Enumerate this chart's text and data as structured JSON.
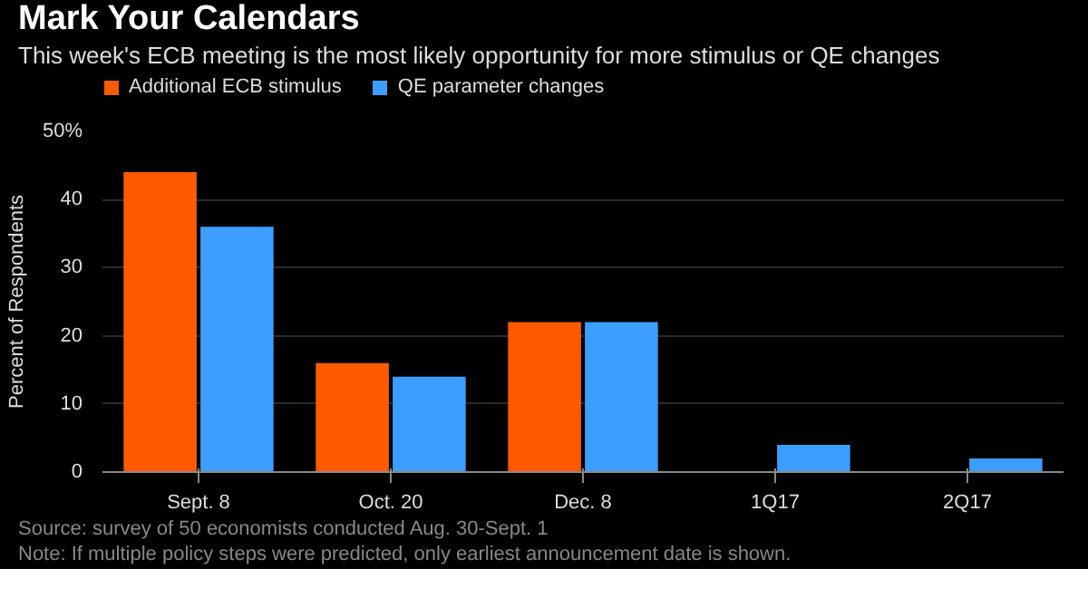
{
  "chart_data": {
    "type": "bar",
    "title": "Mark Your Calendars",
    "subtitle": "This week's ECB meeting is the most likely opportunity for more stimulus or QE changes",
    "ylabel": "Percent of Respondents",
    "categories": [
      "Sept. 8",
      "Oct. 20",
      "Dec. 8",
      "1Q17",
      "2Q17"
    ],
    "series": [
      {
        "name": "Additional ECB stimulus",
        "color": "#ff5a00",
        "values": [
          44,
          16,
          22,
          0,
          0
        ]
      },
      {
        "name": "QE parameter changes",
        "color": "#3b9eff",
        "values": [
          36,
          14,
          22,
          4,
          2
        ]
      }
    ],
    "ylim": [
      0,
      50
    ],
    "yticks": [
      0,
      10,
      20,
      30,
      40,
      {
        "value": 50,
        "label": "50%"
      }
    ],
    "grid": "y",
    "legend": "top left",
    "annotations": [
      "Source: survey of 50 economists conducted Aug. 30-Sept. 1",
      "Note: If multiple policy steps were predicted, only earliest announcement date is shown."
    ]
  }
}
